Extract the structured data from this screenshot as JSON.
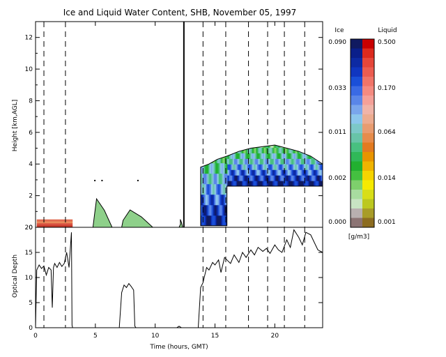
{
  "title": "Ice and Liquid Water Content, SHB, November 05, 1997",
  "chart_data": [
    {
      "type": "heatmap",
      "panel": "top",
      "xlabel": "",
      "ylabel": "Height [km,AGL]",
      "xlim": [
        0,
        24
      ],
      "ylim": [
        0,
        13
      ],
      "xticks": [
        0,
        5,
        10,
        15,
        20
      ],
      "yticks": [
        0,
        2,
        4,
        6,
        8,
        10,
        12
      ],
      "dashed_time_markers": [
        0.7,
        2.5,
        14.0,
        15.9,
        17.8,
        19.4,
        20.8,
        22.5
      ],
      "solid_time_marker": 12.4,
      "liquid_layer": {
        "x_start": 0.1,
        "x_end": 3.1,
        "top": 0.5
      },
      "low_clouds": [
        {
          "x_start": 4.8,
          "x_end": 6.4,
          "peak_x": 5.1,
          "top": 1.8
        },
        {
          "x_start": 7.2,
          "x_end": 9.8,
          "peak_x": 7.9,
          "top": 1.1
        },
        {
          "x_start": 12.0,
          "x_end": 12.3,
          "peak_x": 12.1,
          "top": 0.5
        }
      ],
      "upper_cloud": {
        "x": [
          13.8,
          14.5,
          15.2,
          16.0,
          17.0,
          18.0,
          19.0,
          20.0,
          21.0,
          22.0,
          23.0,
          24.0
        ],
        "top": [
          3.8,
          4.0,
          4.3,
          4.5,
          4.8,
          5.0,
          5.1,
          5.2,
          5.0,
          4.8,
          4.5,
          4.0
        ],
        "base_before_16h": 0.1,
        "base_after_16h": 2.6
      }
    },
    {
      "type": "line",
      "panel": "bottom",
      "xlabel": "Time (hours, GMT)",
      "ylabel": "Optical Depth",
      "xlim": [
        0,
        24
      ],
      "ylim": [
        0,
        20
      ],
      "xticks": [
        0,
        5,
        10,
        15,
        20
      ],
      "yticks": [
        0,
        5,
        10,
        15,
        20
      ],
      "series": [
        {
          "x": [
            0.0,
            0.1,
            0.3,
            0.5,
            0.7,
            0.9,
            1.1,
            1.3,
            1.4,
            1.5,
            1.6,
            1.8,
            2.0,
            2.2,
            2.4,
            2.6,
            2.8,
            3.0,
            3.05,
            3.1,
            7.0,
            7.2,
            7.4,
            7.6,
            7.8,
            8.0,
            8.2,
            8.3,
            8.4,
            8.6,
            11.8,
            12.0,
            12.2,
            13.6,
            13.8,
            14.0,
            14.3,
            14.5,
            14.8,
            15.0,
            15.3,
            15.5,
            15.8,
            16.0,
            16.3,
            16.6,
            17.0,
            17.3,
            17.6,
            18.0,
            18.3,
            18.6,
            19.0,
            19.3,
            19.6,
            20.0,
            20.3,
            20.6,
            21.0,
            21.3,
            21.6,
            22.0,
            22.3,
            22.6,
            23.0,
            23.3,
            23.6,
            24.0
          ],
          "y": [
            0,
            11.5,
            12.5,
            11.8,
            12.3,
            10.5,
            12.0,
            11.5,
            4.0,
            12.0,
            12.8,
            12.0,
            13.0,
            12.2,
            12.8,
            15.0,
            12.0,
            19.0,
            0.5,
            0,
            0,
            7.0,
            8.5,
            8.0,
            8.8,
            8.2,
            7.5,
            0.3,
            0,
            0,
            0,
            0.3,
            0,
            0,
            8.0,
            9.0,
            12.0,
            11.5,
            13.0,
            12.5,
            13.5,
            11.0,
            14.0,
            13.5,
            12.8,
            14.5,
            13.0,
            15.0,
            14.0,
            15.5,
            14.5,
            16.0,
            15.2,
            15.8,
            14.8,
            16.5,
            15.5,
            15.0,
            17.5,
            16.0,
            19.5,
            18.0,
            16.5,
            19.0,
            18.5,
            17.0,
            15.5,
            15.0
          ]
        }
      ]
    },
    {
      "type": "colorbar",
      "ice_label": "Ice",
      "liquid_label": "Liquid",
      "units": "[g/m3]",
      "ice_ticks": [
        "0.090",
        "0.033",
        "0.011",
        "0.002",
        "0.000"
      ],
      "liquid_ticks": [
        "0.500",
        "0.170",
        "0.064",
        "0.014",
        "0.001"
      ],
      "ice_colors": [
        "#101a60",
        "#0a1f8a",
        "#0d2aa3",
        "#1036c0",
        "#1a4fd8",
        "#3a6ae4",
        "#5a86e8",
        "#7aa6ec",
        "#8cc6ec",
        "#7cc8c8",
        "#68c4a8",
        "#48c080",
        "#30b858",
        "#22b030",
        "#44c040",
        "#7ed06c",
        "#a8dca0",
        "#c8e4c4",
        "#b8b0b0",
        "#8c7474"
      ],
      "liquid_colors": [
        "#c80000",
        "#dc2a1e",
        "#e6463a",
        "#ec5c50",
        "#f07468",
        "#f48a80",
        "#f4a098",
        "#f0b4a8",
        "#ecac90",
        "#e89c70",
        "#e68c4c",
        "#e27a20",
        "#e89400",
        "#f0b400",
        "#f6d400",
        "#f6ea00",
        "#d8de18",
        "#bcc820",
        "#a89c28",
        "#8c6c20"
      ]
    }
  ]
}
